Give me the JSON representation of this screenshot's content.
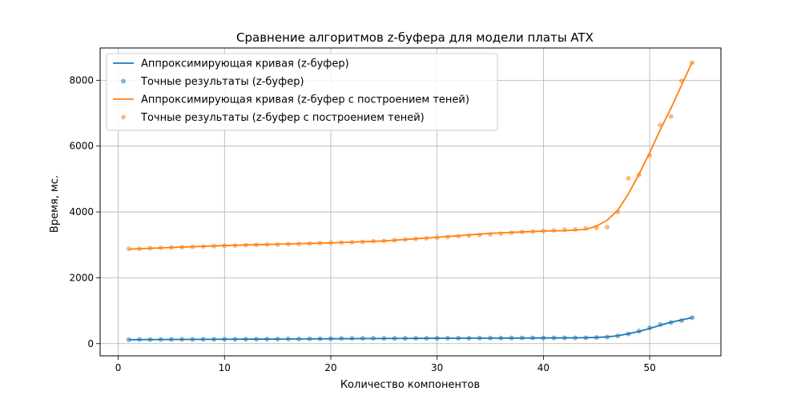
{
  "chart_data": {
    "type": "line",
    "title": "Сравнение алгоритмов z-буфера для модели платы ATX",
    "xlabel": "Количество компонентов",
    "ylabel": "Время, мс.",
    "xlim": [
      -1.7,
      56.7
    ],
    "ylim": [
      -370,
      8980
    ],
    "xticks": [
      0,
      10,
      20,
      30,
      40,
      50
    ],
    "yticks": [
      0,
      2000,
      4000,
      6000,
      8000
    ],
    "grid": true,
    "legend_position": "top-left",
    "series": [
      {
        "name": "Аппроксимирующая кривая (z-буфер)",
        "kind": "line",
        "color": "#1f77b4",
        "x": [
          1,
          4,
          8,
          12,
          16,
          20,
          24,
          28,
          32,
          36,
          40,
          42,
          44,
          45,
          46,
          47,
          48,
          49,
          50,
          51,
          52,
          53,
          54
        ],
        "y": [
          120,
          125,
          130,
          135,
          140,
          148,
          155,
          160,
          165,
          168,
          172,
          175,
          180,
          188,
          205,
          240,
          300,
          370,
          460,
          560,
          650,
          720,
          790
        ]
      },
      {
        "name": "Точные результаты (z-буфер)",
        "kind": "scatter",
        "color": "#1f77b4",
        "x": [
          1,
          2,
          3,
          4,
          5,
          6,
          7,
          8,
          9,
          10,
          11,
          12,
          13,
          14,
          15,
          16,
          17,
          18,
          19,
          20,
          21,
          22,
          23,
          24,
          25,
          26,
          27,
          28,
          29,
          30,
          31,
          32,
          33,
          34,
          35,
          36,
          37,
          38,
          39,
          40,
          41,
          42,
          43,
          44,
          45,
          46,
          47,
          48,
          49,
          50,
          51,
          52,
          53,
          54
        ],
        "y": [
          120,
          125,
          125,
          128,
          128,
          130,
          130,
          132,
          132,
          135,
          135,
          138,
          138,
          140,
          140,
          142,
          142,
          145,
          145,
          148,
          160,
          160,
          160,
          160,
          162,
          162,
          162,
          165,
          165,
          165,
          168,
          168,
          168,
          170,
          170,
          170,
          172,
          172,
          172,
          172,
          175,
          175,
          175,
          178,
          185,
          200,
          235,
          295,
          380,
          480,
          580,
          640,
          700,
          790
        ]
      },
      {
        "name": "Аппроксимирующая кривая (z-буфер с построением теней)",
        "kind": "line",
        "color": "#ff7f0e",
        "x": [
          1,
          5,
          10,
          15,
          20,
          25,
          30,
          35,
          40,
          42,
          44,
          45,
          46,
          47,
          48,
          49,
          50,
          51,
          52,
          53,
          54
        ],
        "y": [
          2870,
          2920,
          2980,
          3020,
          3060,
          3120,
          3230,
          3350,
          3420,
          3430,
          3470,
          3570,
          3750,
          4050,
          4550,
          5150,
          5800,
          6500,
          7150,
          7850,
          8550
        ]
      },
      {
        "name": "Точные результаты (z-буфер с построением теней)",
        "kind": "scatter",
        "color": "#ff7f0e",
        "x": [
          1,
          2,
          3,
          4,
          5,
          6,
          7,
          8,
          9,
          10,
          11,
          12,
          13,
          14,
          15,
          16,
          17,
          18,
          19,
          20,
          21,
          22,
          23,
          24,
          25,
          26,
          27,
          28,
          29,
          30,
          31,
          32,
          33,
          34,
          35,
          36,
          37,
          38,
          39,
          40,
          41,
          42,
          43,
          44,
          45,
          46,
          47,
          48,
          49,
          50,
          51,
          52,
          53,
          54
        ],
        "y": [
          2880,
          2880,
          2900,
          2910,
          2920,
          2930,
          2940,
          2950,
          2960,
          2970,
          2980,
          2990,
          3000,
          3010,
          3010,
          3020,
          3030,
          3040,
          3050,
          3060,
          3070,
          3080,
          3090,
          3110,
          3120,
          3140,
          3160,
          3180,
          3200,
          3220,
          3240,
          3260,
          3280,
          3300,
          3320,
          3340,
          3370,
          3390,
          3400,
          3420,
          3440,
          3460,
          3470,
          3500,
          3520,
          3540,
          4000,
          5020,
          5130,
          5720,
          6640,
          6900,
          7980,
          8530
        ]
      }
    ]
  }
}
